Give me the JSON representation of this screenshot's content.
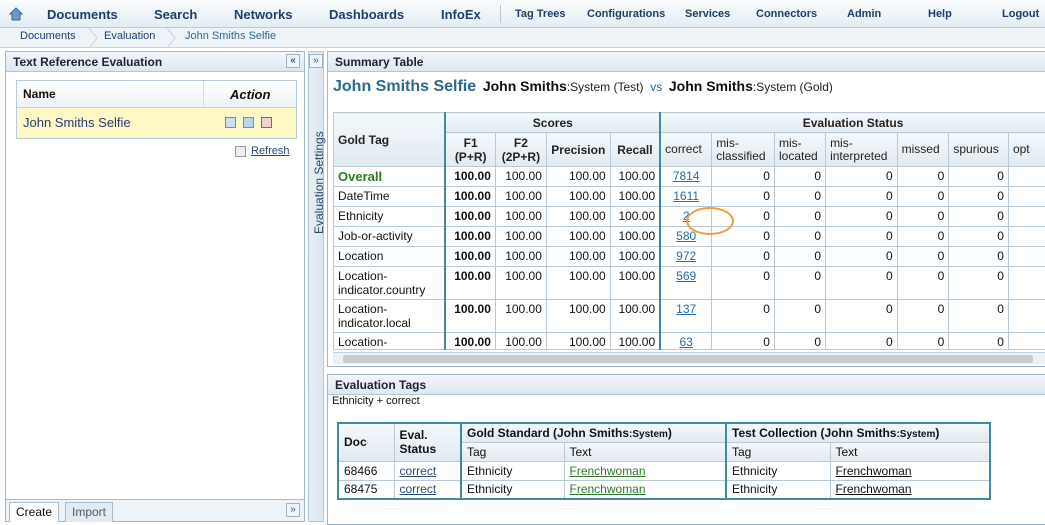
{
  "nav": {
    "documents": "Documents",
    "search": "Search",
    "networks": "Networks",
    "dashboards": "Dashboards",
    "infoex": "InfoEx",
    "tag_trees": "Tag Trees",
    "configurations": "Configurations",
    "services": "Services",
    "connectors": "Connectors",
    "admin": "Admin",
    "help": "Help",
    "logout": "Logout"
  },
  "breadcrumb": [
    "Documents",
    "Evaluation",
    "John Smiths Selfie"
  ],
  "left_panel": {
    "title": "Text Reference Evaluation",
    "col_name": "Name",
    "col_action": "Action",
    "row_name": "John Smiths Selfie",
    "refresh": "Refresh",
    "tab_create": "Create",
    "tab_import": "Import"
  },
  "side_strip": {
    "label": "Evaluation Settings"
  },
  "summary": {
    "panel_title": "Summary Table",
    "title": "John Smiths Selfie",
    "test_name": "John Smiths",
    "test_sys": ":System (Test)",
    "vs": "vs",
    "gold_name": "John Smiths",
    "gold_sys": ":System (Gold)",
    "headers": {
      "gold_tag": "Gold Tag",
      "scores": "Scores",
      "eval_status": "Evaluation Status",
      "f1": "F1",
      "f1_sub": "(P+R)",
      "f2": "F2",
      "f2_sub": "(2P+R)",
      "precision": "Precision",
      "recall": "Recall",
      "correct": "correct",
      "misclassified": "mis-classified",
      "mislocated": "mis-located",
      "misinterpreted": "mis-interpreted",
      "missed": "missed",
      "spurious": "spurious",
      "opt": "opt"
    },
    "rows": [
      {
        "tag": "Overall",
        "f1": "100.00",
        "f2": "100.00",
        "p": "100.00",
        "r": "100.00",
        "correct": "7814",
        "mc": "0",
        "ml": "0",
        "mi": "0",
        "ms": "0",
        "sp": "0"
      },
      {
        "tag": "DateTime",
        "f1": "100.00",
        "f2": "100.00",
        "p": "100.00",
        "r": "100.00",
        "correct": "1611",
        "mc": "0",
        "ml": "0",
        "mi": "0",
        "ms": "0",
        "sp": "0"
      },
      {
        "tag": "Ethnicity",
        "f1": "100.00",
        "f2": "100.00",
        "p": "100.00",
        "r": "100.00",
        "correct": "2",
        "mc": "0",
        "ml": "0",
        "mi": "0",
        "ms": "0",
        "sp": "0"
      },
      {
        "tag": "Job-or-activity",
        "f1": "100.00",
        "f2": "100.00",
        "p": "100.00",
        "r": "100.00",
        "correct": "580",
        "mc": "0",
        "ml": "0",
        "mi": "0",
        "ms": "0",
        "sp": "0"
      },
      {
        "tag": "Location",
        "f1": "100.00",
        "f2": "100.00",
        "p": "100.00",
        "r": "100.00",
        "correct": "972",
        "mc": "0",
        "ml": "0",
        "mi": "0",
        "ms": "0",
        "sp": "0"
      },
      {
        "tag": "Location-indicator.country",
        "f1": "100.00",
        "f2": "100.00",
        "p": "100.00",
        "r": "100.00",
        "correct": "569",
        "mc": "0",
        "ml": "0",
        "mi": "0",
        "ms": "0",
        "sp": "0"
      },
      {
        "tag": "Location-indicator.local",
        "f1": "100.00",
        "f2": "100.00",
        "p": "100.00",
        "r": "100.00",
        "correct": "137",
        "mc": "0",
        "ml": "0",
        "mi": "0",
        "ms": "0",
        "sp": "0"
      },
      {
        "tag": "Location-",
        "f1": "100.00",
        "f2": "100.00",
        "p": "100.00",
        "r": "100.00",
        "correct": "63",
        "mc": "0",
        "ml": "0",
        "mi": "0",
        "ms": "0",
        "sp": "0"
      }
    ]
  },
  "eval_tags": {
    "panel_title": "Evaluation Tags",
    "subtitle": "Ethnicity + correct",
    "headers": {
      "doc": "Doc",
      "eval_status": "Eval. Status",
      "gold_a": "Gold Standard (John Smiths",
      "gold_b": ":System",
      ")": ")",
      "test_a": "Test Collection (John Smiths",
      "test_b": ":System",
      "tag": "Tag",
      "text": "Text"
    },
    "rows": [
      {
        "doc": "68466",
        "status": "correct",
        "gold_tag": "Ethnicity",
        "gold_text": "Frenchwoman",
        "test_tag": "Ethnicity",
        "test_text": "Frenchwoman"
      },
      {
        "doc": "68475",
        "status": "correct",
        "gold_tag": "Ethnicity",
        "gold_text": "Frenchwoman",
        "test_tag": "Ethnicity",
        "test_text": "Frenchwoman"
      }
    ]
  },
  "colors": {
    "accent": "#2b6a8d",
    "overall_green": "#2a7a2a",
    "highlight_row": "#fdf8c4",
    "circle": "#f39a3a"
  }
}
